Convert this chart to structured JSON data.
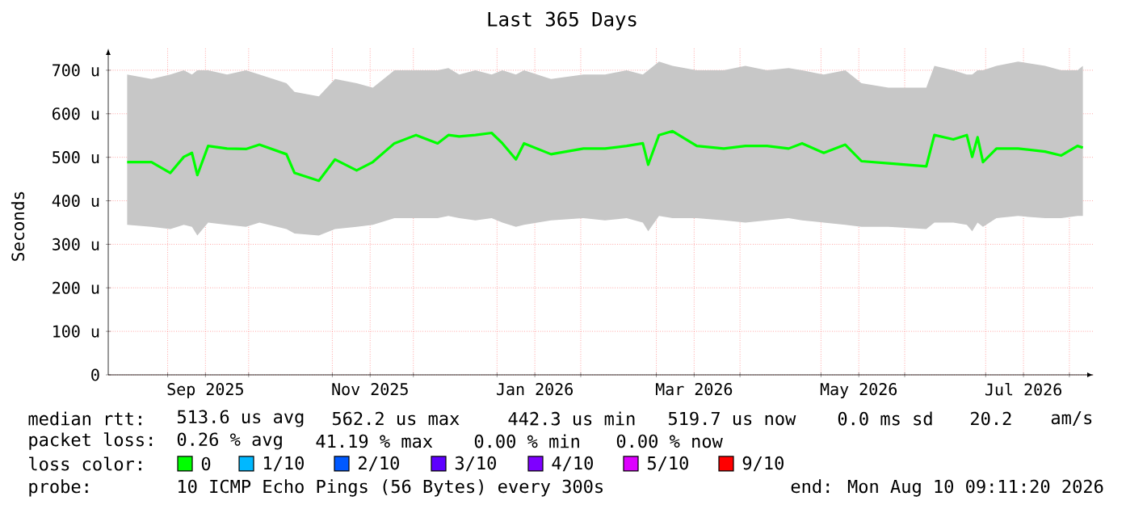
{
  "chart_data": {
    "type": "line",
    "title": "Last 365 Days",
    "ylabel": "Seconds",
    "x": [
      "2025-08-17",
      "2025-08-26",
      "2025-09-02",
      "2025-09-07",
      "2025-09-10",
      "2025-09-12",
      "2025-09-16",
      "2025-09-23",
      "2025-09-30",
      "2025-10-05",
      "2025-10-15",
      "2025-10-18",
      "2025-10-27",
      "2025-11-02",
      "2025-11-10",
      "2025-11-16",
      "2025-11-24",
      "2025-12-02",
      "2025-12-10",
      "2025-12-14",
      "2025-12-18",
      "2025-12-24",
      "2025-12-30",
      "2026-01-03",
      "2026-01-08",
      "2026-01-11",
      "2026-01-21",
      "2026-02-02",
      "2026-02-10",
      "2026-02-18",
      "2026-02-24",
      "2026-02-26",
      "2026-03-02",
      "2026-03-07",
      "2026-03-16",
      "2026-03-26",
      "2026-04-03",
      "2026-04-11",
      "2026-04-19",
      "2026-04-24",
      "2026-05-02",
      "2026-05-10",
      "2026-05-16",
      "2026-05-26",
      "2026-06-09",
      "2026-06-12",
      "2026-06-19",
      "2026-06-24",
      "2026-06-26",
      "2026-06-28",
      "2026-06-30",
      "2026-07-05",
      "2026-07-13",
      "2026-07-23",
      "2026-07-29",
      "2026-08-04",
      "2026-08-06"
    ],
    "series": [
      {
        "name": "0",
        "color": "#00ff00",
        "values": [
          489,
          489,
          464,
          501,
          510,
          459,
          526,
          520,
          519,
          529,
          507,
          464,
          446,
          495,
          470,
          489,
          532,
          551,
          532,
          551,
          548,
          551,
          556,
          532,
          495,
          532,
          507,
          520,
          520,
          526,
          532,
          483,
          551,
          560,
          526,
          520,
          526,
          526,
          520,
          532,
          510,
          529,
          491,
          486,
          479,
          551,
          541,
          551,
          501,
          546,
          489,
          520,
          520,
          513,
          504,
          526,
          522
        ],
        "lower": [
          345,
          340,
          335,
          345,
          340,
          320,
          350,
          345,
          340,
          350,
          335,
          325,
          320,
          335,
          340,
          345,
          360,
          360,
          360,
          365,
          360,
          355,
          360,
          350,
          340,
          345,
          355,
          360,
          355,
          360,
          350,
          330,
          365,
          360,
          360,
          355,
          350,
          355,
          360,
          355,
          350,
          345,
          340,
          340,
          335,
          350,
          350,
          345,
          330,
          350,
          340,
          360,
          365,
          360,
          360,
          365,
          365
        ],
        "upper": [
          690,
          680,
          690,
          700,
          690,
          700,
          700,
          690,
          700,
          690,
          670,
          650,
          640,
          680,
          670,
          660,
          700,
          700,
          700,
          705,
          690,
          700,
          690,
          700,
          690,
          700,
          680,
          690,
          690,
          700,
          690,
          700,
          720,
          710,
          700,
          700,
          710,
          700,
          705,
          700,
          690,
          700,
          670,
          660,
          660,
          710,
          700,
          690,
          690,
          700,
          700,
          710,
          720,
          710,
          700,
          700,
          710
        ]
      },
      {
        "name": "1/10",
        "color": "#00b8ff",
        "values": [
          null,
          null,
          null,
          null,
          null,
          null,
          null,
          null,
          null,
          null,
          null,
          null,
          null,
          null,
          null,
          null,
          null,
          null,
          null,
          null,
          null,
          null,
          null,
          null,
          null,
          null,
          null,
          null,
          null,
          null,
          null,
          null,
          null,
          null,
          null,
          null,
          null,
          null,
          null,
          null,
          null,
          null,
          null,
          null,
          null,
          null,
          null,
          null,
          null,
          null,
          null,
          null,
          null,
          null,
          null,
          null,
          null
        ]
      },
      {
        "name": "2/10",
        "color": "#0059ff",
        "values": [
          null,
          null,
          null,
          null,
          null,
          null,
          null,
          null,
          null,
          null,
          null,
          null,
          null,
          null,
          null,
          null,
          null,
          null,
          null,
          null,
          null,
          null,
          null,
          null,
          null,
          null,
          null,
          null,
          null,
          null,
          null,
          null,
          null,
          null,
          null,
          null,
          null,
          null,
          null,
          null,
          null,
          null,
          null,
          null,
          null,
          null,
          null,
          null,
          null,
          null,
          null,
          null,
          null,
          null,
          null,
          null,
          null
        ]
      },
      {
        "name": "3/10",
        "color": "#5e00ff",
        "values": [
          null,
          null,
          null,
          null,
          null,
          null,
          null,
          null,
          null,
          null,
          null,
          null,
          null,
          null,
          null,
          null,
          null,
          null,
          null,
          null,
          null,
          null,
          null,
          null,
          null,
          null,
          null,
          null,
          null,
          null,
          null,
          null,
          null,
          null,
          null,
          null,
          null,
          null,
          null,
          null,
          null,
          null,
          null,
          null,
          null,
          null,
          null,
          null,
          null,
          null,
          null,
          null,
          null,
          null,
          null,
          null,
          null
        ]
      },
      {
        "name": "4/10",
        "color": "#7e00ff",
        "values": [
          null,
          null,
          null,
          null,
          null,
          null,
          null,
          null,
          null,
          null,
          null,
          null,
          null,
          null,
          null,
          null,
          null,
          null,
          null,
          null,
          null,
          null,
          null,
          null,
          null,
          null,
          null,
          null,
          null,
          null,
          null,
          null,
          null,
          null,
          null,
          null,
          null,
          null,
          null,
          null,
          null,
          null,
          null,
          null,
          null,
          null,
          null,
          null,
          null,
          null,
          null,
          null,
          null,
          null,
          null,
          null,
          null
        ]
      },
      {
        "name": "5/10",
        "color": "#dd00ff",
        "values": [
          null,
          null,
          null,
          null,
          null,
          null,
          null,
          null,
          null,
          null,
          null,
          null,
          null,
          null,
          null,
          null,
          null,
          null,
          null,
          null,
          null,
          null,
          null,
          null,
          null,
          null,
          null,
          null,
          null,
          null,
          null,
          null,
          null,
          null,
          null,
          null,
          null,
          null,
          null,
          null,
          null,
          null,
          null,
          null,
          null,
          null,
          null,
          null,
          null,
          null,
          null,
          null,
          null,
          null,
          null,
          null,
          null
        ]
      },
      {
        "name": "9/10",
        "color": "#ff0000",
        "values": [
          null,
          null,
          null,
          null,
          null,
          null,
          null,
          null,
          null,
          null,
          null,
          null,
          null,
          null,
          null,
          null,
          null,
          null,
          null,
          null,
          null,
          null,
          null,
          null,
          null,
          null,
          null,
          null,
          null,
          null,
          null,
          null,
          null,
          null,
          null,
          null,
          null,
          null,
          null,
          null,
          null,
          null,
          null,
          null,
          null,
          null,
          null,
          null,
          null,
          null,
          null,
          null,
          null,
          null,
          null,
          null,
          null
        ]
      }
    ],
    "legend_title": "loss color:",
    "legend": "bottom",
    "grid": true,
    "xlim": [
      "2025-08-10",
      "2026-08-10"
    ],
    "xticks": [
      {
        "value": "2025-09-01",
        "label": null
      },
      {
        "value": "2025-09-15",
        "label": "Sep 2025"
      },
      {
        "value": "2025-10-01",
        "label": null
      },
      {
        "value": "2025-11-01",
        "label": null
      },
      {
        "value": "2025-11-15",
        "label": "Nov 2025"
      },
      {
        "value": "2025-12-01",
        "label": null
      },
      {
        "value": "2026-01-01",
        "label": null
      },
      {
        "value": "2026-01-15",
        "label": "Jan 2026"
      },
      {
        "value": "2026-02-01",
        "label": null
      },
      {
        "value": "2026-03-01",
        "label": null
      },
      {
        "value": "2026-03-15",
        "label": "Mar 2026"
      },
      {
        "value": "2026-04-01",
        "label": null
      },
      {
        "value": "2026-05-01",
        "label": null
      },
      {
        "value": "2026-05-15",
        "label": "May 2026"
      },
      {
        "value": "2026-06-01",
        "label": null
      },
      {
        "value": "2026-07-01",
        "label": null
      },
      {
        "value": "2026-07-15",
        "label": "Jul 2026"
      },
      {
        "value": "2026-08-01",
        "label": null
      }
    ],
    "ylim": [
      0,
      750
    ],
    "yticks": [
      0,
      {
        "value": 100,
        "label": "100 u"
      },
      {
        "value": 200,
        "label": "200 u"
      },
      {
        "value": 300,
        "label": "300 u"
      },
      {
        "value": 400,
        "label": "400 u"
      },
      {
        "value": 500,
        "label": "500 u"
      },
      {
        "value": 600,
        "label": "600 u"
      },
      {
        "value": 700,
        "label": "700 u"
      }
    ],
    "annotations": [
      "median rtt:",
      "513.6 us avg",
      "562.2 us max",
      "442.3 us min",
      "519.7 us now",
      "0.0 ms sd",
      "20.2",
      "am/s",
      "packet loss:",
      "0.26 % avg",
      "41.19 % max",
      "0.00 % min",
      "0.00 % now",
      "probe:",
      "10 ICMP Echo Pings (56 Bytes) every 300s",
      "end: Mon Aug 10 09:11:20 2026"
    ]
  }
}
